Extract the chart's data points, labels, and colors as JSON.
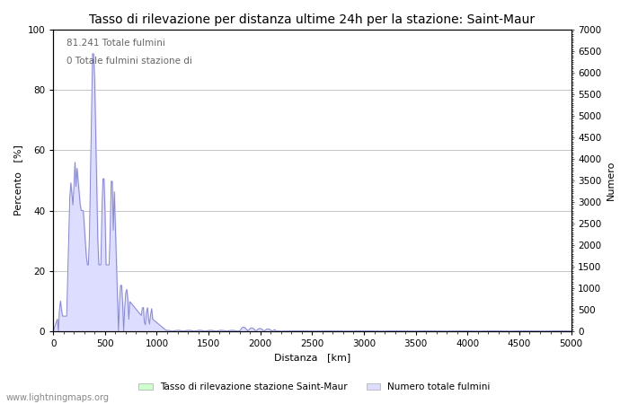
{
  "title": "Tasso di rilevazione per distanza ultime 24h per la stazione: Saint-Maur",
  "xlabel": "Distanza   [km]",
  "ylabel_left": "Percento   [%]",
  "ylabel_right": "Numero",
  "annotation_line1": "81.241 Totale fulmini",
  "annotation_line2": "0 Totale fulmini stazione di",
  "legend_label1": "Tasso di rilevazione stazione Saint-Maur",
  "legend_label2": "Numero totale fulmini",
  "watermark": "www.lightningmaps.org",
  "xlim": [
    0,
    5000
  ],
  "ylim_left": [
    0,
    100
  ],
  "ylim_right": [
    0,
    7000
  ],
  "xticks": [
    0,
    500,
    1000,
    1500,
    2000,
    2500,
    3000,
    3500,
    4000,
    4500,
    5000
  ],
  "yticks_left": [
    0,
    20,
    40,
    60,
    80,
    100
  ],
  "yticks_right": [
    0,
    500,
    1000,
    1500,
    2000,
    2500,
    3000,
    3500,
    4000,
    4500,
    5000,
    5500,
    6000,
    6500,
    7000
  ],
  "line_color": "#8888cc",
  "fill_color_detection": "#ddddff",
  "fill_color_total": "#ccffcc",
  "background_color": "#ffffff",
  "grid_color": "#aaaaaa",
  "title_fontsize": 10,
  "label_fontsize": 8,
  "tick_fontsize": 7.5,
  "annotation_fontsize": 7.5,
  "watermark_fontsize": 7
}
